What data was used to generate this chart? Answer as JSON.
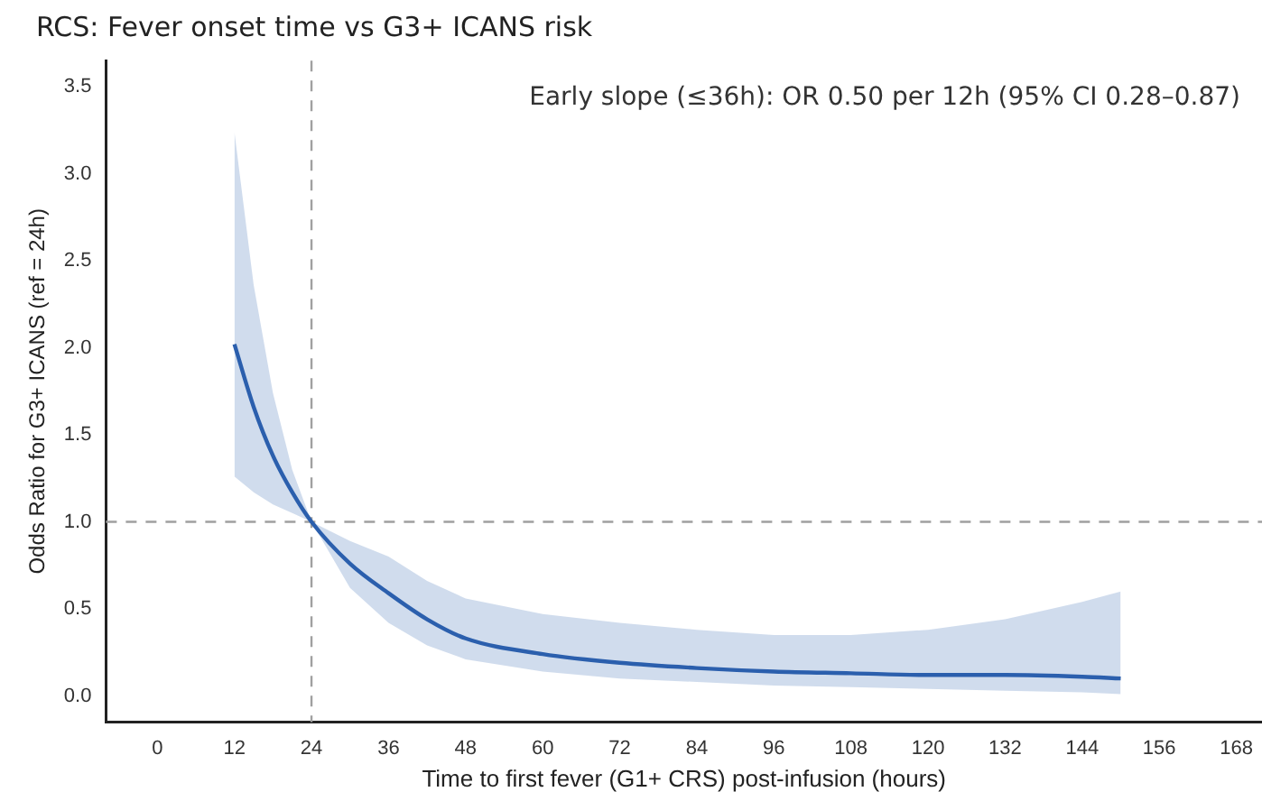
{
  "chart_data": {
    "type": "line",
    "title": "RCS: Fever onset time vs G3+ ICANS risk",
    "xlabel": "Time to first fever (G1+ CRS) post-infusion (hours)",
    "ylabel": "Odds Ratio for G3+ ICANS (ref = 24h)",
    "x": [
      12,
      15,
      18,
      21,
      24,
      30,
      36,
      42,
      48,
      60,
      72,
      84,
      96,
      108,
      120,
      132,
      144,
      150
    ],
    "series": [
      {
        "color": "#2b5fad",
        "values": [
          2.02,
          1.66,
          1.38,
          1.17,
          1.0,
          0.76,
          0.59,
          0.44,
          0.33,
          0.24,
          0.19,
          0.16,
          0.14,
          0.13,
          0.12,
          0.12,
          0.11,
          0.1
        ],
        "lower": [
          1.26,
          1.17,
          1.1,
          1.05,
          1.0,
          0.62,
          0.42,
          0.29,
          0.21,
          0.14,
          0.1,
          0.08,
          0.06,
          0.05,
          0.04,
          0.03,
          0.02,
          0.01
        ],
        "upper": [
          3.24,
          2.36,
          1.74,
          1.3,
          1.0,
          0.89,
          0.8,
          0.66,
          0.56,
          0.47,
          0.42,
          0.38,
          0.35,
          0.35,
          0.38,
          0.44,
          0.54,
          0.6
        ]
      }
    ],
    "xlim": [
      -8,
      172
    ],
    "xticks": [
      0,
      12,
      24,
      36,
      48,
      60,
      72,
      84,
      96,
      108,
      120,
      132,
      144,
      156,
      168
    ],
    "ylim": [
      -0.15,
      3.65
    ],
    "yticks": [
      {
        "value": 0,
        "label": "0.0"
      },
      {
        "value": 0.5,
        "label": "0.5"
      },
      {
        "value": 1,
        "label": "1.0"
      },
      {
        "value": 1.5,
        "label": "1.5"
      },
      {
        "value": 2,
        "label": "2.0"
      },
      {
        "value": 2.5,
        "label": "2.5"
      },
      {
        "value": 3,
        "label": "3.0"
      },
      {
        "value": 3.5,
        "label": "3.5"
      }
    ],
    "grid": false,
    "legend": false,
    "marker": "none",
    "line_style": "solid",
    "ref_lines": [
      {
        "axis": "x",
        "value": 24,
        "color": "#a0a0a0",
        "line_style": "dashed"
      },
      {
        "axis": "y",
        "value": 1,
        "color": "#a0a0a0",
        "line_style": "dashed"
      }
    ],
    "annotations": [
      "Early slope (≤36h): OR 0.50 per 12h (95% CI 0.28–0.87)"
    ]
  }
}
